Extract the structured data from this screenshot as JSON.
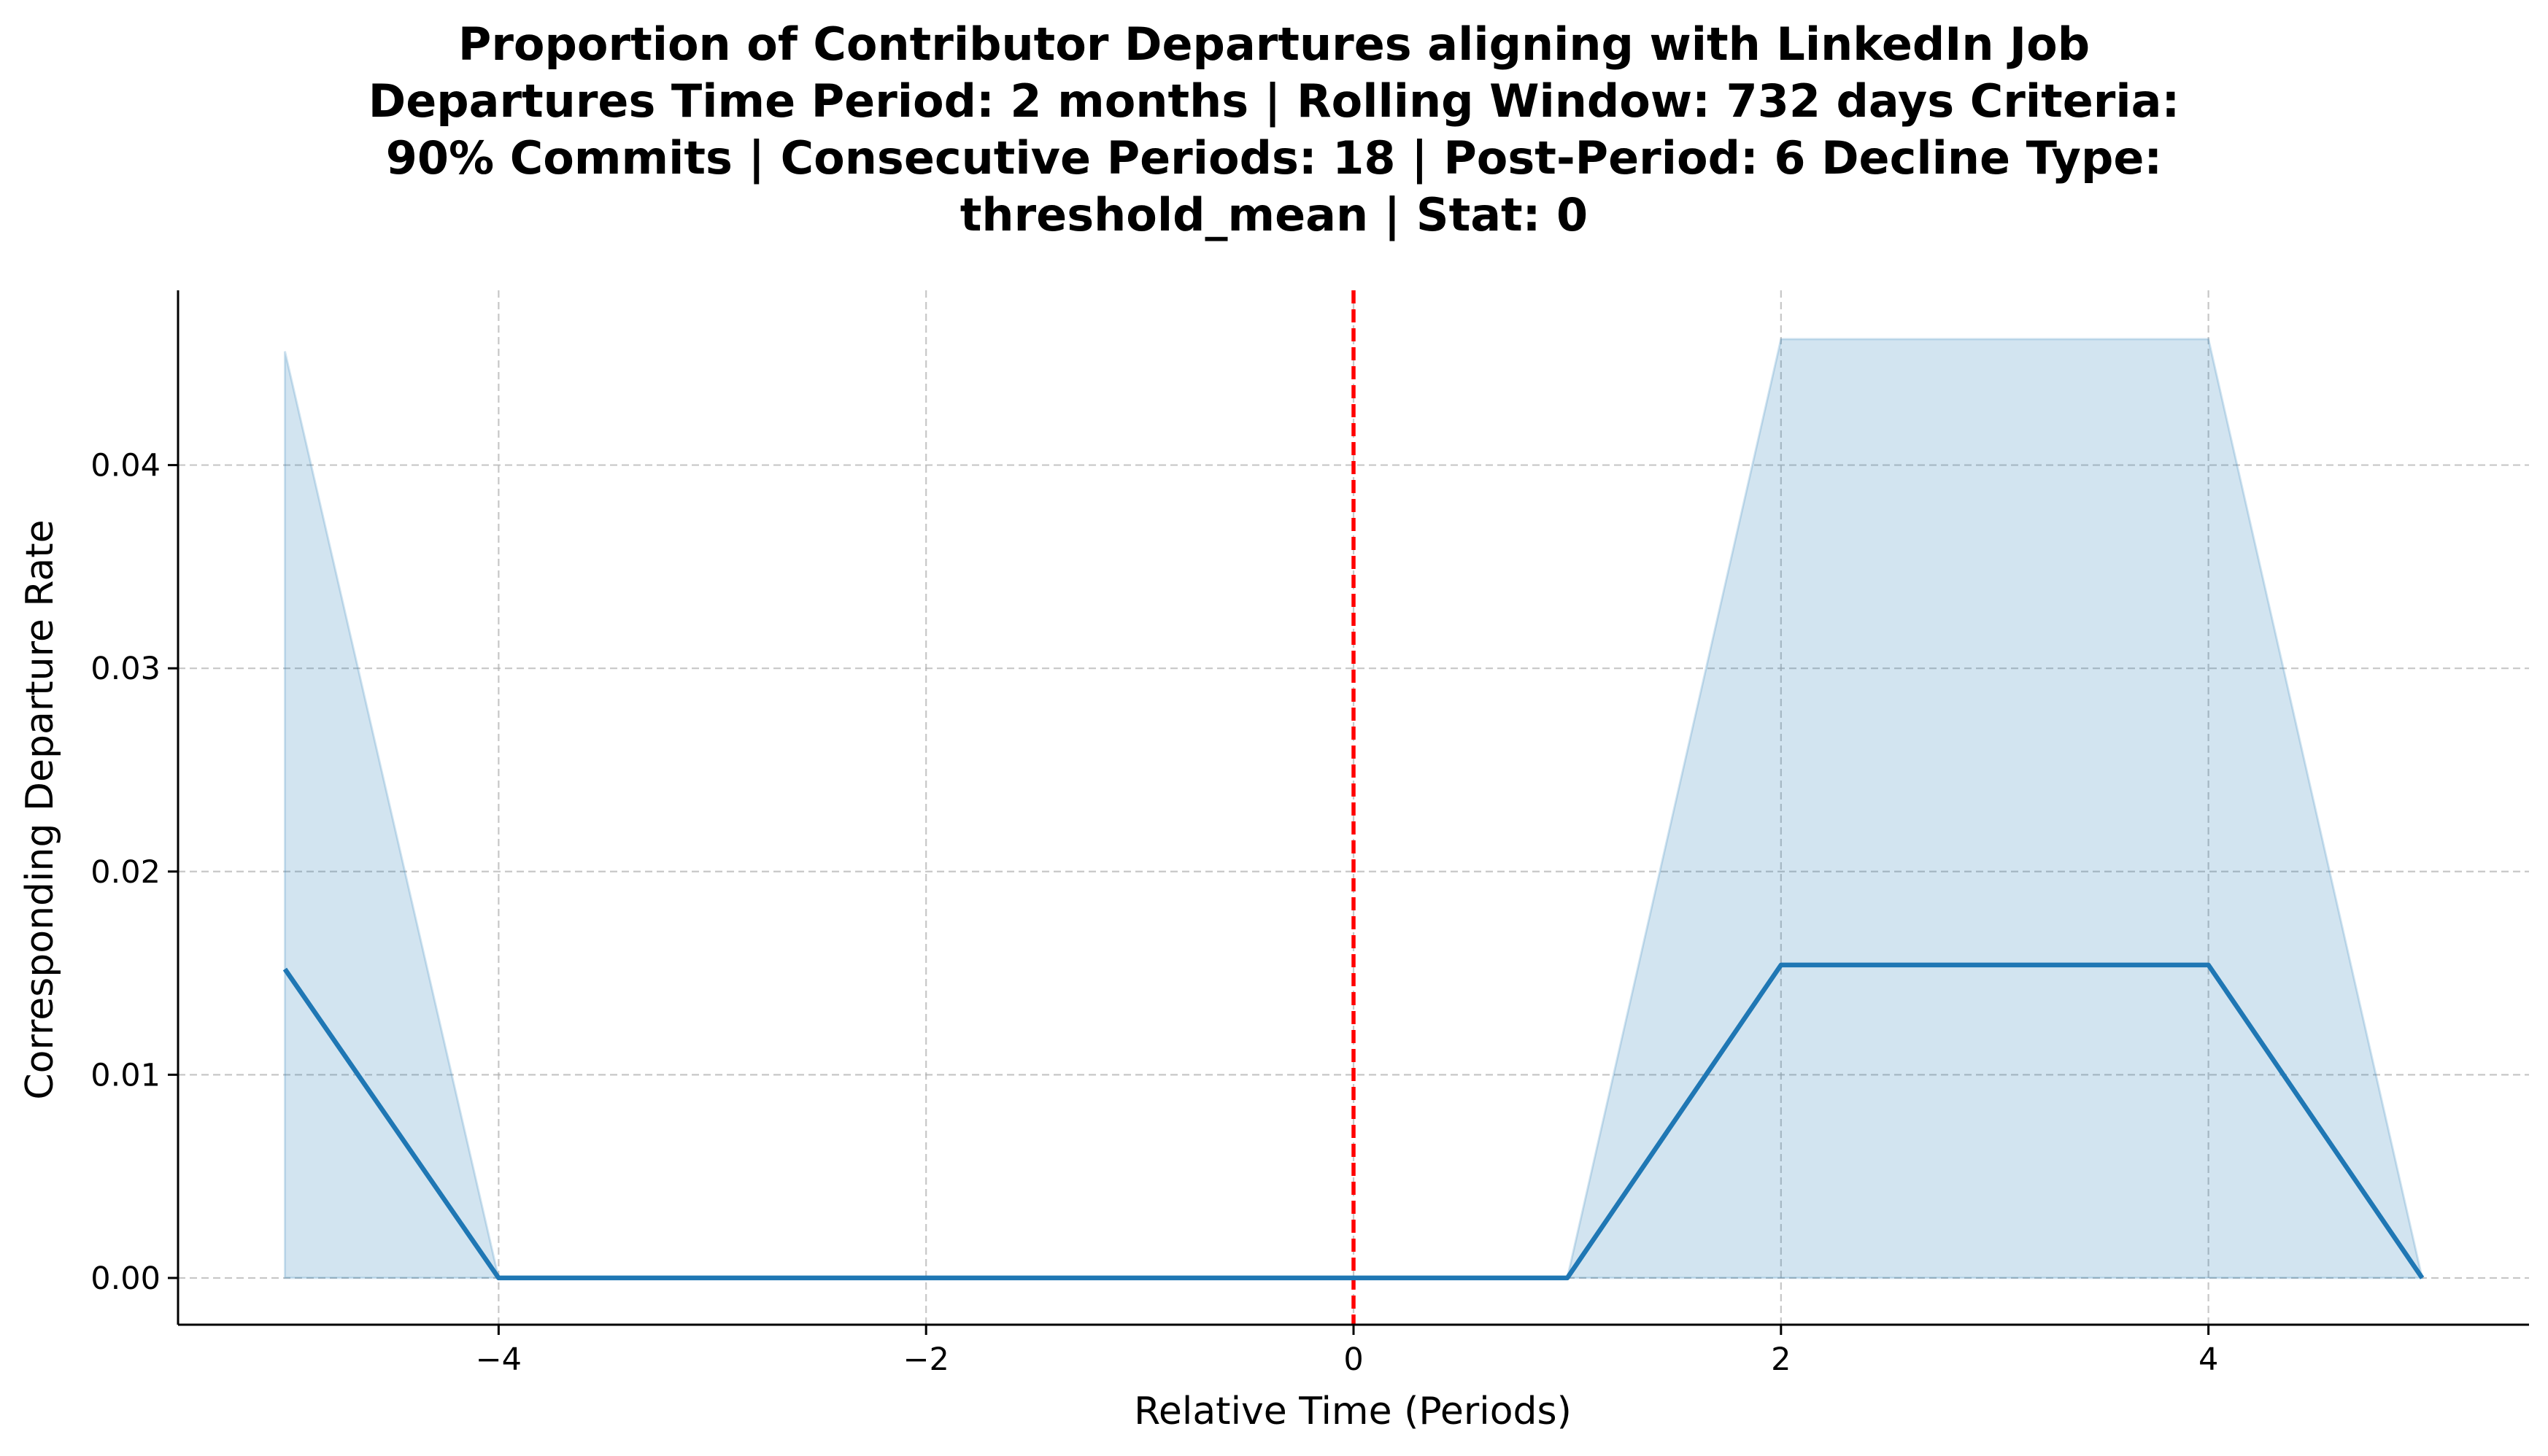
{
  "chart_data": {
    "type": "line",
    "title_lines": [
      "Proportion of Contributor Departures aligning with LinkedIn Job",
      "Departures Time Period: 2 months | Rolling Window: 732 days  Criteria:",
      "90% Commits | Consecutive Periods: 18 | Post-Period: 6 Decline Type:",
      "threshold_mean | Stat: 0"
    ],
    "xlabel": "Relative Time (Periods)",
    "ylabel": "Corresponding Departure Rate",
    "xlim": [
      -5.5,
      5.5
    ],
    "ylim": [
      -0.0023,
      0.0486
    ],
    "xticks": [
      -4,
      -2,
      0,
      2,
      4
    ],
    "xtick_labels": [
      "−4",
      "−2",
      "0",
      "2",
      "4"
    ],
    "yticks": [
      0.0,
      0.01,
      0.02,
      0.03,
      0.04
    ],
    "ytick_labels": [
      "0.00",
      "0.01",
      "0.02",
      "0.03",
      "0.04"
    ],
    "grid": true,
    "series": [
      {
        "x": [
          -5,
          -4,
          -3,
          -2,
          -1,
          0,
          1,
          2,
          3,
          4,
          5
        ],
        "values": [
          0.0152,
          0.0,
          0.0,
          0.0,
          0.0,
          0.0,
          0.0,
          0.0154,
          0.0154,
          0.0154,
          0.0
        ],
        "ci_lower": [
          0.0,
          0.0,
          0.0,
          0.0,
          0.0,
          0.0,
          0.0,
          0.0,
          0.0,
          0.0,
          0.0
        ],
        "ci_upper": [
          0.0456,
          0.0,
          0.0,
          0.0,
          0.0,
          0.0,
          0.0,
          0.0462,
          0.0462,
          0.0462,
          0.0
        ],
        "color": "#1f77b4"
      }
    ],
    "vline": {
      "x": 0,
      "color": "#ff0000",
      "style": "dashed"
    }
  }
}
